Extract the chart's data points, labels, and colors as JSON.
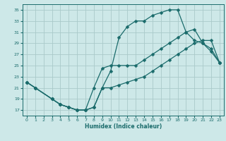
{
  "background_color": "#cde8e8",
  "grid_color": "#aacaca",
  "line_color": "#1a6b6b",
  "marker_color": "#1a6b6b",
  "xlabel": "Humidex (Indice chaleur)",
  "xlim": [
    -0.5,
    23.5
  ],
  "ylim": [
    16,
    36
  ],
  "yticks": [
    17,
    19,
    21,
    23,
    25,
    27,
    29,
    31,
    33,
    35
  ],
  "xticks": [
    0,
    1,
    2,
    3,
    4,
    5,
    6,
    7,
    8,
    9,
    10,
    11,
    12,
    13,
    14,
    15,
    16,
    17,
    18,
    19,
    20,
    21,
    22,
    23
  ],
  "line1_x": [
    0,
    1,
    3,
    4,
    5,
    6,
    7,
    8,
    9,
    10,
    11,
    12,
    13,
    14,
    15,
    16,
    17,
    18,
    19,
    20,
    21,
    22,
    23
  ],
  "line1_y": [
    22,
    21,
    19,
    18,
    17.5,
    17,
    17,
    17.5,
    21,
    24,
    30,
    32,
    33,
    33,
    34,
    34.5,
    35,
    35,
    31,
    29.5,
    29,
    27.5,
    25.5
  ],
  "line2_x": [
    0,
    1,
    3,
    4,
    5,
    6,
    7,
    8,
    9,
    10,
    11,
    12,
    13,
    14,
    15,
    16,
    17,
    18,
    19,
    20,
    21,
    22,
    23
  ],
  "line2_y": [
    22,
    21,
    19,
    18,
    17.5,
    17,
    17,
    21,
    24.5,
    25,
    25,
    25,
    25,
    26,
    27,
    28,
    29,
    30,
    31,
    31.5,
    29,
    28,
    25.5
  ],
  "line3_x": [
    0,
    1,
    3,
    4,
    5,
    6,
    7,
    8,
    9,
    10,
    11,
    12,
    13,
    14,
    15,
    16,
    17,
    18,
    19,
    20,
    21,
    22,
    23
  ],
  "line3_y": [
    22,
    21,
    19,
    18,
    17.5,
    17,
    17,
    17.5,
    21,
    21,
    21.5,
    22,
    22.5,
    23,
    24,
    25,
    26,
    27,
    28,
    29,
    29.5,
    29.5,
    25.5
  ]
}
